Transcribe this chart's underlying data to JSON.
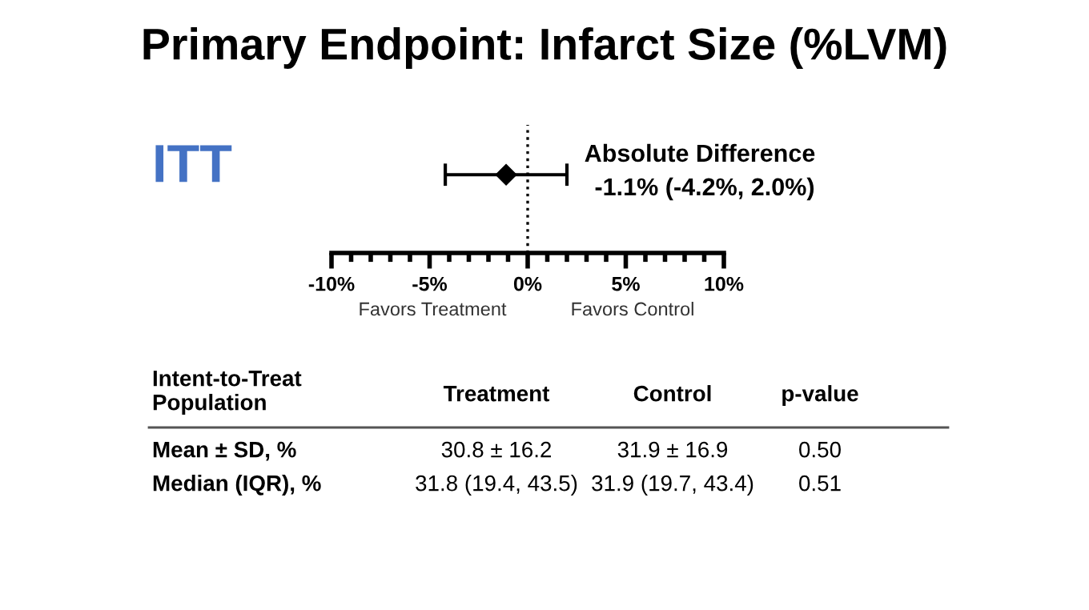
{
  "chart_data": {
    "type": "scatter",
    "orientation": "horizontal",
    "title": "Primary Endpoint: Infarct Size (%LVM)",
    "categories": [
      null
    ],
    "values": [
      -1.1
    ],
    "errors": [
      [
        -4.2,
        2.0
      ]
    ],
    "color": "#000000",
    "marker": "diamond",
    "xlim": [
      -10,
      10
    ],
    "xticks": [
      {
        "value": -10,
        "label": "-10%"
      },
      {
        "value": -9,
        "label": null
      },
      {
        "value": -8,
        "label": null
      },
      {
        "value": -7,
        "label": null
      },
      {
        "value": -6,
        "label": null
      },
      {
        "value": -5,
        "label": "-5%"
      },
      {
        "value": -4,
        "label": null
      },
      {
        "value": -3,
        "label": null
      },
      {
        "value": -2,
        "label": null
      },
      {
        "value": -1,
        "label": null
      },
      {
        "value": 0,
        "label": "0%"
      },
      {
        "value": 1,
        "label": null
      },
      {
        "value": 2,
        "label": null
      },
      {
        "value": 3,
        "label": null
      },
      {
        "value": 4,
        "label": null
      },
      {
        "value": 5,
        "label": "5%"
      },
      {
        "value": 6,
        "label": null
      },
      {
        "value": 7,
        "label": null
      },
      {
        "value": 8,
        "label": null
      },
      {
        "value": 9,
        "label": null
      },
      {
        "value": 10,
        "label": "10%"
      }
    ],
    "tick_labels": "x",
    "grid": false,
    "ref_lines": [
      {
        "axis": "x",
        "value": 0,
        "line_style": "dotted",
        "color": "#000000"
      }
    ],
    "annotations": [
      "ITT",
      "Absolute Difference",
      "-1.1% (-4.2%, 2.0%)",
      "Favors Treatment",
      "Favors Control",
      "Intent-to-Treat\nPopulation",
      "Treatment",
      "Control",
      "p-value",
      "Mean ± SD, %",
      "30.8 ± 16.2",
      "31.9 ± 16.9",
      "0.50",
      "Median (IQR), %",
      "31.8 (19.4, 43.5)",
      "31.9 (19.7, 43.4)",
      "0.51"
    ]
  }
}
